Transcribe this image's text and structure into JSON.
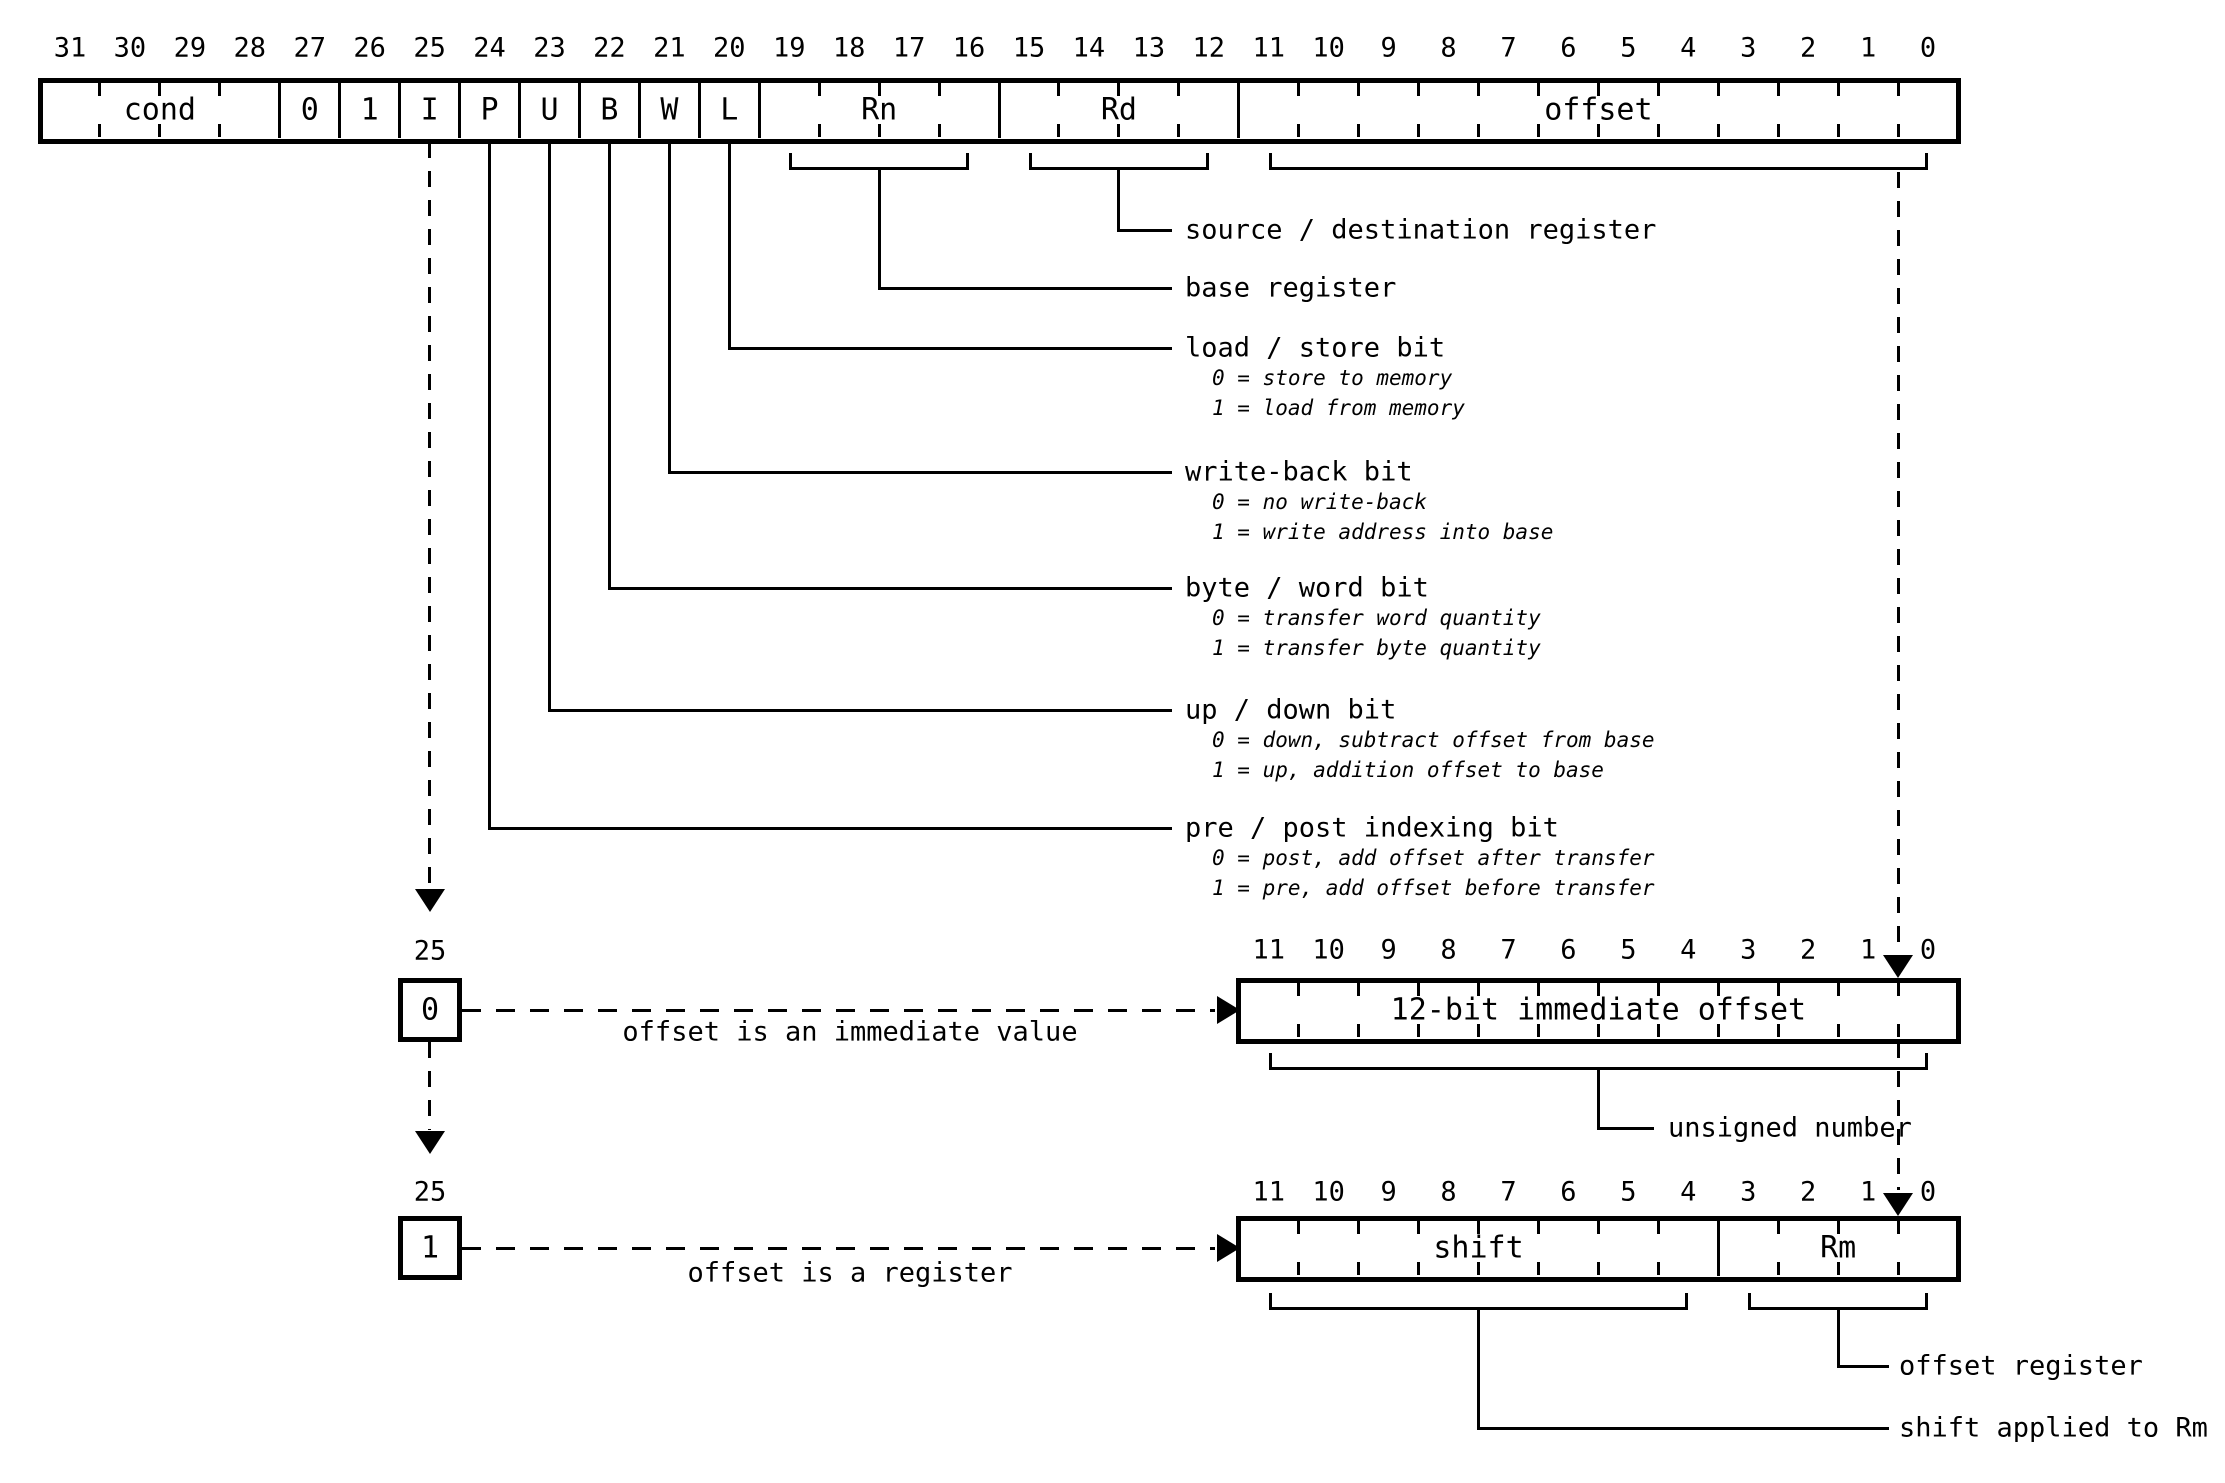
{
  "colors": {
    "ink": "#000000",
    "background": "#ffffff"
  },
  "main_encoding": {
    "bit_numbers": [
      "31",
      "30",
      "29",
      "28",
      "27",
      "26",
      "25",
      "24",
      "23",
      "22",
      "21",
      "20",
      "19",
      "18",
      "17",
      "16",
      "15",
      "14",
      "13",
      "12",
      "11",
      "10",
      "9",
      "8",
      "7",
      "6",
      "5",
      "4",
      "3",
      "2",
      "1",
      "0"
    ],
    "fields": [
      {
        "label": "cond",
        "msb": 31,
        "lsb": 28
      },
      {
        "label": "0",
        "msb": 27,
        "lsb": 27
      },
      {
        "label": "1",
        "msb": 26,
        "lsb": 26
      },
      {
        "label": "I",
        "msb": 25,
        "lsb": 25
      },
      {
        "label": "P",
        "msb": 24,
        "lsb": 24
      },
      {
        "label": "U",
        "msb": 23,
        "lsb": 23
      },
      {
        "label": "B",
        "msb": 22,
        "lsb": 22
      },
      {
        "label": "W",
        "msb": 21,
        "lsb": 21
      },
      {
        "label": "L",
        "msb": 20,
        "lsb": 20
      },
      {
        "label": "Rn",
        "msb": 19,
        "lsb": 16
      },
      {
        "label": "Rd",
        "msb": 15,
        "lsb": 12
      },
      {
        "label": "offset",
        "msb": 11,
        "lsb": 0
      }
    ],
    "annotations": [
      {
        "target": "Rd",
        "label": "source / destination register",
        "details": []
      },
      {
        "target": "Rn",
        "label": "base register",
        "details": []
      },
      {
        "target": "L",
        "label": "load / store bit",
        "details": [
          "0 = store to memory",
          "1 = load from memory"
        ]
      },
      {
        "target": "W",
        "label": "write-back bit",
        "details": [
          "0 = no write-back",
          "1 = write address into base"
        ]
      },
      {
        "target": "B",
        "label": "byte / word bit",
        "details": [
          "0 = transfer word quantity",
          "1 = transfer byte quantity"
        ]
      },
      {
        "target": "U",
        "label": "up / down bit",
        "details": [
          "0 = down, subtract offset from base",
          "1 = up, addition offset to base"
        ]
      },
      {
        "target": "P",
        "label": "pre / post indexing bit",
        "details": [
          "0 = post, add offset after transfer",
          "1 = pre, add offset before transfer"
        ]
      }
    ]
  },
  "immediate_variant": {
    "source_bit": "25",
    "value": "0",
    "caption": "offset is an immediate value",
    "bit_numbers": [
      "11",
      "10",
      "9",
      "8",
      "7",
      "6",
      "5",
      "4",
      "3",
      "2",
      "1",
      "0"
    ],
    "fields": [
      {
        "label": "12-bit immediate offset",
        "msb": 11,
        "lsb": 0
      }
    ],
    "brace_label": "unsigned number"
  },
  "register_variant": {
    "source_bit": "25",
    "value": "1",
    "caption": "offset is a register",
    "bit_numbers": [
      "11",
      "10",
      "9",
      "8",
      "7",
      "6",
      "5",
      "4",
      "3",
      "2",
      "1",
      "0"
    ],
    "fields": [
      {
        "label": "shift",
        "msb": 11,
        "lsb": 4
      },
      {
        "label": "Rm",
        "msb": 3,
        "lsb": 0
      }
    ],
    "brace_labels": [
      {
        "field": "Rm",
        "label": "offset register"
      },
      {
        "field": "shift",
        "label": "shift applied to Rm"
      }
    ]
  }
}
